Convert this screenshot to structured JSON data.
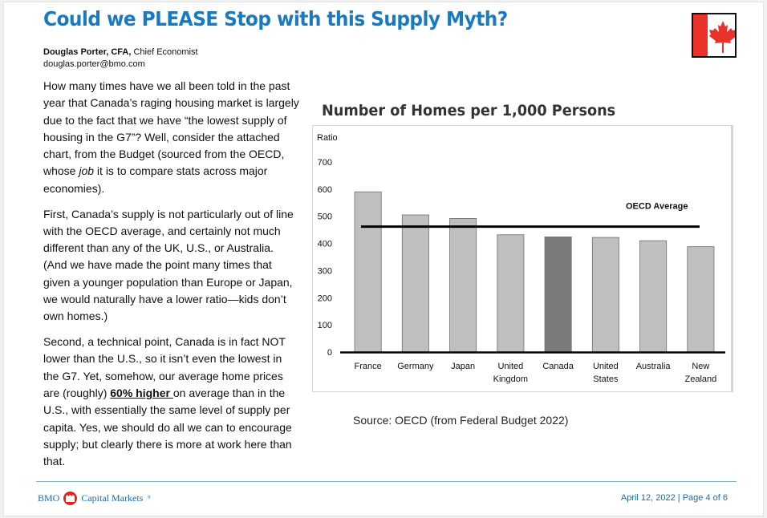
{
  "header": {
    "title": "Could we PLEASE Stop with this Supply Myth?",
    "author_name": "Douglas Porter, CFA,",
    "author_role": " Chief Economist",
    "author_email": "douglas.porter@bmo.com",
    "flag_icon": "canada-flag-icon"
  },
  "body": {
    "p1": "How many times have we all been told in the past year that Canada’s raging housing market is largely due to the fact that we have “the lowest supply of housing in the G7”? Well, consider the attached chart, from the Budget (sourced from the OECD, whose ",
    "p1_em": "job",
    "p1_end": " it is to compare stats across major economies).",
    "p2": "First, Canada’s supply is not particularly out of line with the OECD average, and certainly not much different than any of the UK, U.S., or Australia. (And we have made the point many times that given a younger population than Europe or Japan, we would naturally have a lower ratio—kids don’t own homes.)",
    "p3_start": "Second, a technical point, Canada is in fact NOT lower than the U.S., so it isn’t even the lowest in the G7. Yet, somehow, our average home prices are (roughly) ",
    "p3_highlight": "60% higher ",
    "p3_end": "on average than in the U.S., with essentially the same level of supply per capita. Yes, we should do all we can to encourage supply; but clearly there is more at work here than that."
  },
  "chart_data": {
    "type": "bar",
    "title": "Number of Homes per 1,000 Persons",
    "ylabel": "Ratio",
    "xlabel": "",
    "ylim": [
      0,
      700
    ],
    "yticks": [
      0,
      100,
      200,
      300,
      400,
      500,
      600,
      700
    ],
    "categories": [
      "France",
      "Germany",
      "Japan",
      "United Kingdom",
      "Canada",
      "United States",
      "Australia",
      "New Zealand"
    ],
    "category_lines": [
      [
        "France"
      ],
      [
        "Germany"
      ],
      [
        "Japan"
      ],
      [
        "United",
        "Kingdom"
      ],
      [
        "Canada"
      ],
      [
        "United",
        "States"
      ],
      [
        "Australia"
      ],
      [
        "New",
        "Zealand"
      ]
    ],
    "values": [
      590,
      505,
      492,
      432,
      424,
      422,
      410,
      388
    ],
    "highlight": "Canada",
    "reference_line": {
      "label": "OECD Average",
      "value": 462
    },
    "grid": false,
    "colors": {
      "bar": "#bfbfbf",
      "highlight": "#7a7a7a",
      "line": "#000000"
    },
    "source": "Source: OECD (from Federal Budget 2022)"
  },
  "footer": {
    "brand_left": "BMO",
    "brand_right": "Capital Markets",
    "brand_mark": "®",
    "date_page": "April 12, 2022 | Page 4 of 6"
  }
}
